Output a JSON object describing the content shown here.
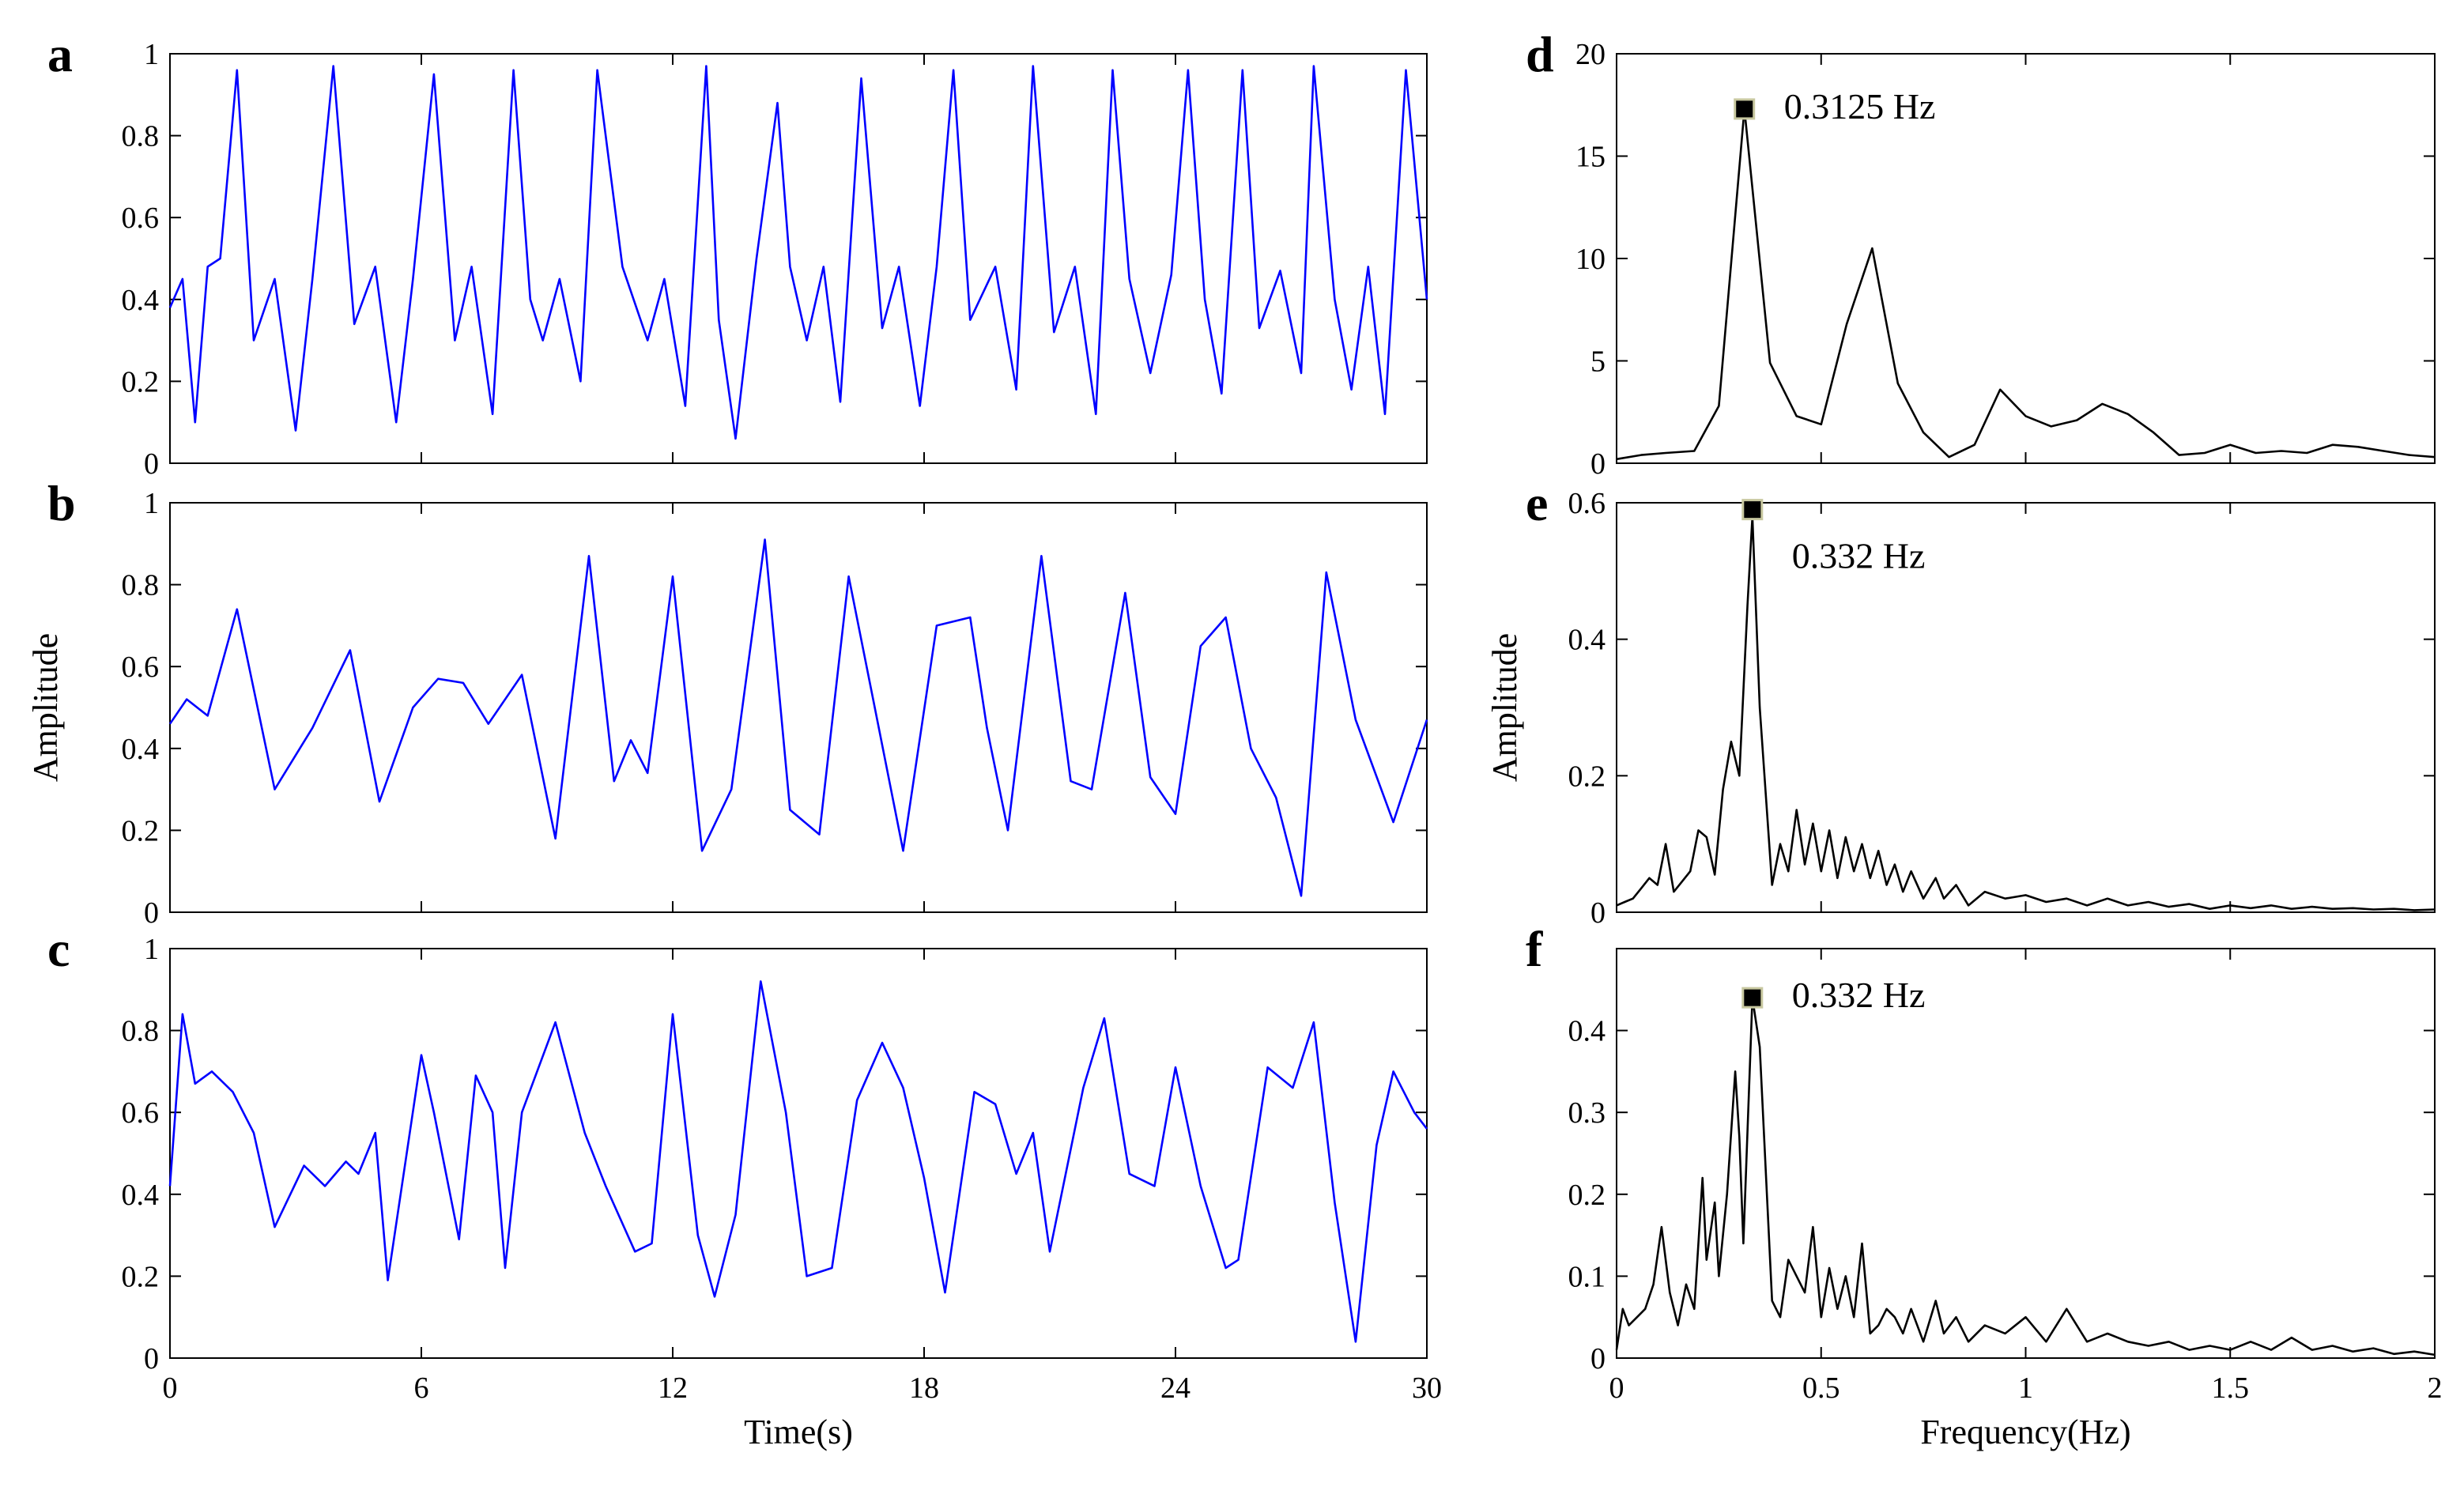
{
  "chart_data": [
    {
      "id": "a",
      "panel_label": "a",
      "type": "line",
      "series_color": "#0000ff",
      "xlim": [
        0,
        30
      ],
      "ylim": [
        0,
        1
      ],
      "yticks": [
        0,
        0.2,
        0.4,
        0.6,
        0.8,
        1
      ],
      "ytick_labels": [
        "0",
        "0.2",
        "0.4",
        "0.6",
        "0.8",
        "1"
      ],
      "xticks": [
        0,
        6,
        12,
        18,
        24,
        30
      ],
      "xtick_labels": [],
      "xlabel": "",
      "ylabel": "",
      "x": [
        0,
        0.3,
        0.6,
        0.9,
        1.2,
        1.6,
        2.0,
        2.5,
        3.0,
        3.4,
        3.9,
        4.4,
        4.9,
        5.4,
        5.8,
        6.3,
        6.8,
        7.2,
        7.7,
        8.2,
        8.6,
        8.9,
        9.3,
        9.8,
        10.2,
        10.8,
        11.4,
        11.8,
        12.3,
        12.8,
        13.1,
        13.5,
        14.0,
        14.5,
        14.8,
        15.2,
        15.6,
        16.0,
        16.5,
        17.0,
        17.4,
        17.9,
        18.3,
        18.7,
        19.1,
        19.7,
        20.2,
        20.6,
        21.1,
        21.6,
        22.1,
        22.5,
        22.9,
        23.4,
        23.9,
        24.3,
        24.7,
        25.1,
        25.6,
        26.0,
        26.5,
        27.0,
        27.3,
        27.8,
        28.2,
        28.6,
        29.0,
        29.5,
        30
      ],
      "y": [
        0.38,
        0.45,
        0.1,
        0.48,
        0.5,
        0.96,
        0.3,
        0.45,
        0.08,
        0.45,
        0.97,
        0.34,
        0.48,
        0.1,
        0.45,
        0.95,
        0.3,
        0.48,
        0.12,
        0.96,
        0.4,
        0.3,
        0.45,
        0.2,
        0.96,
        0.48,
        0.3,
        0.45,
        0.14,
        0.97,
        0.35,
        0.06,
        0.5,
        0.88,
        0.48,
        0.3,
        0.48,
        0.15,
        0.94,
        0.33,
        0.48,
        0.14,
        0.48,
        0.96,
        0.35,
        0.48,
        0.18,
        0.97,
        0.32,
        0.48,
        0.12,
        0.96,
        0.45,
        0.22,
        0.46,
        0.96,
        0.4,
        0.17,
        0.96,
        0.33,
        0.47,
        0.22,
        0.97,
        0.4,
        0.18,
        0.48,
        0.12,
        0.96,
        0.4
      ],
      "peak_label": null
    },
    {
      "id": "b",
      "panel_label": "b",
      "type": "line",
      "series_color": "#0000ff",
      "xlim": [
        0,
        30
      ],
      "ylim": [
        0,
        1
      ],
      "yticks": [
        0,
        0.2,
        0.4,
        0.6,
        0.8,
        1
      ],
      "ytick_labels": [
        "0",
        "0.2",
        "0.4",
        "0.6",
        "0.8",
        "1"
      ],
      "xticks": [
        0,
        6,
        12,
        18,
        24,
        30
      ],
      "xtick_labels": [],
      "xlabel": "",
      "ylabel": "Amplitude",
      "x": [
        0,
        0.4,
        0.9,
        1.6,
        2.5,
        3.4,
        4.3,
        5.0,
        5.8,
        6.4,
        7.0,
        7.6,
        8.4,
        9.2,
        10.0,
        10.6,
        11.0,
        11.4,
        12.0,
        12.7,
        13.4,
        14.2,
        14.8,
        15.5,
        16.2,
        16.9,
        17.5,
        18.3,
        19.1,
        19.5,
        20.0,
        20.8,
        21.5,
        22.0,
        22.8,
        23.4,
        24.0,
        24.6,
        25.2,
        25.8,
        26.4,
        27.0,
        27.6,
        28.3,
        29.2,
        30
      ],
      "y": [
        0.46,
        0.52,
        0.48,
        0.74,
        0.3,
        0.45,
        0.64,
        0.27,
        0.5,
        0.57,
        0.56,
        0.46,
        0.58,
        0.18,
        0.87,
        0.32,
        0.42,
        0.34,
        0.82,
        0.15,
        0.3,
        0.91,
        0.25,
        0.19,
        0.82,
        0.46,
        0.15,
        0.7,
        0.72,
        0.45,
        0.2,
        0.87,
        0.32,
        0.3,
        0.78,
        0.33,
        0.24,
        0.65,
        0.72,
        0.4,
        0.28,
        0.04,
        0.83,
        0.47,
        0.22,
        0.47
      ],
      "peak_label": null
    },
    {
      "id": "c",
      "panel_label": "c",
      "type": "line",
      "series_color": "#0000ff",
      "xlim": [
        0,
        30
      ],
      "ylim": [
        0,
        1
      ],
      "yticks": [
        0,
        0.2,
        0.4,
        0.6,
        0.8,
        1
      ],
      "ytick_labels": [
        "0",
        "0.2",
        "0.4",
        "0.6",
        "0.8",
        "1"
      ],
      "xticks": [
        0,
        6,
        12,
        18,
        24,
        30
      ],
      "xtick_labels": [
        "0",
        "6",
        "12",
        "18",
        "24",
        "30"
      ],
      "xlabel": "Time(s)",
      "ylabel": "",
      "x": [
        0,
        0.3,
        0.6,
        1.0,
        1.5,
        2.0,
        2.5,
        3.2,
        3.7,
        4.2,
        4.5,
        4.9,
        5.2,
        6.0,
        6.3,
        6.9,
        7.3,
        7.7,
        8.0,
        8.4,
        9.2,
        9.9,
        10.4,
        11.1,
        11.5,
        12.0,
        12.6,
        13.0,
        13.5,
        14.1,
        14.7,
        15.2,
        15.8,
        16.4,
        17.0,
        17.5,
        18.0,
        18.5,
        19.2,
        19.7,
        20.2,
        20.6,
        21.0,
        21.8,
        22.3,
        22.9,
        23.5,
        24.0,
        24.6,
        25.2,
        25.5,
        26.2,
        26.8,
        27.3,
        27.8,
        28.3,
        28.8,
        29.2,
        29.7,
        30
      ],
      "y": [
        0.42,
        0.84,
        0.67,
        0.7,
        0.65,
        0.55,
        0.32,
        0.47,
        0.42,
        0.48,
        0.45,
        0.55,
        0.19,
        0.74,
        0.6,
        0.29,
        0.69,
        0.6,
        0.22,
        0.6,
        0.82,
        0.55,
        0.42,
        0.26,
        0.28,
        0.84,
        0.3,
        0.15,
        0.35,
        0.92,
        0.6,
        0.2,
        0.22,
        0.63,
        0.77,
        0.66,
        0.44,
        0.16,
        0.65,
        0.62,
        0.45,
        0.55,
        0.26,
        0.66,
        0.83,
        0.45,
        0.42,
        0.71,
        0.42,
        0.22,
        0.24,
        0.71,
        0.66,
        0.82,
        0.38,
        0.04,
        0.52,
        0.7,
        0.6,
        0.56
      ],
      "peak_label": null
    },
    {
      "id": "d",
      "panel_label": "d",
      "type": "line",
      "series_color": "#000000",
      "xlim": [
        0,
        2
      ],
      "ylim": [
        0,
        20
      ],
      "yticks": [
        0,
        5,
        10,
        15,
        20
      ],
      "ytick_labels": [
        "0",
        "5",
        "10",
        "15",
        "20"
      ],
      "xticks": [
        0,
        0.5,
        1,
        1.5,
        2
      ],
      "xtick_labels": [],
      "xlabel": "",
      "ylabel": "",
      "x": [
        0,
        0.06,
        0.12,
        0.19,
        0.25,
        0.3125,
        0.375,
        0.44,
        0.5,
        0.5625,
        0.625,
        0.6875,
        0.75,
        0.8125,
        0.875,
        0.9375,
        1.0,
        1.0625,
        1.125,
        1.1875,
        1.25,
        1.3125,
        1.375,
        1.4375,
        1.5,
        1.5625,
        1.625,
        1.6875,
        1.75,
        1.8125,
        1.875,
        1.9375,
        2.0
      ],
      "y": [
        0.2,
        0.4,
        0.5,
        0.6,
        2.8,
        17.3,
        4.9,
        2.3,
        1.9,
        6.8,
        10.5,
        3.9,
        1.5,
        0.3,
        0.9,
        3.6,
        2.3,
        1.8,
        2.1,
        2.9,
        2.4,
        1.5,
        0.4,
        0.5,
        0.9,
        0.5,
        0.6,
        0.5,
        0.9,
        0.8,
        0.6,
        0.4,
        0.3
      ],
      "peak_label": {
        "x": 0.3125,
        "y": 17.3,
        "text": "0.3125 Hz"
      }
    },
    {
      "id": "e",
      "panel_label": "e",
      "type": "line",
      "series_color": "#000000",
      "xlim": [
        0,
        2
      ],
      "ylim": [
        0,
        0.6
      ],
      "yticks": [
        0,
        0.2,
        0.4,
        0.6
      ],
      "ytick_labels": [
        "0",
        "0.2",
        "0.4",
        "0.6"
      ],
      "xticks": [
        0,
        0.5,
        1,
        1.5,
        2
      ],
      "xtick_labels": [],
      "xlabel": "",
      "ylabel": "Amplitude",
      "x": [
        0,
        0.02,
        0.04,
        0.06,
        0.08,
        0.1,
        0.12,
        0.14,
        0.16,
        0.18,
        0.2,
        0.22,
        0.24,
        0.26,
        0.28,
        0.3,
        0.32,
        0.332,
        0.35,
        0.38,
        0.4,
        0.42,
        0.44,
        0.46,
        0.48,
        0.5,
        0.52,
        0.54,
        0.56,
        0.58,
        0.6,
        0.62,
        0.64,
        0.66,
        0.68,
        0.7,
        0.72,
        0.75,
        0.78,
        0.8,
        0.83,
        0.86,
        0.9,
        0.95,
        1.0,
        1.05,
        1.1,
        1.15,
        1.2,
        1.25,
        1.3,
        1.35,
        1.4,
        1.45,
        1.5,
        1.55,
        1.6,
        1.65,
        1.7,
        1.75,
        1.8,
        1.85,
        1.9,
        1.95,
        2.0
      ],
      "y": [
        0.01,
        0.015,
        0.02,
        0.035,
        0.05,
        0.04,
        0.1,
        0.03,
        0.045,
        0.06,
        0.12,
        0.11,
        0.055,
        0.18,
        0.25,
        0.2,
        0.45,
        0.58,
        0.3,
        0.04,
        0.1,
        0.06,
        0.15,
        0.07,
        0.13,
        0.06,
        0.12,
        0.05,
        0.11,
        0.06,
        0.1,
        0.05,
        0.09,
        0.04,
        0.07,
        0.03,
        0.06,
        0.02,
        0.05,
        0.02,
        0.04,
        0.01,
        0.03,
        0.02,
        0.025,
        0.015,
        0.02,
        0.01,
        0.02,
        0.01,
        0.015,
        0.008,
        0.012,
        0.005,
        0.01,
        0.006,
        0.01,
        0.005,
        0.008,
        0.005,
        0.006,
        0.004,
        0.005,
        0.003,
        0.004
      ],
      "peak_label": {
        "x": 0.332,
        "y": 0.59,
        "text": "0.332 Hz"
      }
    },
    {
      "id": "f",
      "panel_label": "f",
      "type": "line",
      "series_color": "#000000",
      "xlim": [
        0,
        2
      ],
      "ylim": [
        0,
        0.5
      ],
      "yticks": [
        0,
        0.1,
        0.2,
        0.3,
        0.4
      ],
      "ytick_labels": [
        "0",
        "0.1",
        "0.2",
        "0.3",
        "0.4"
      ],
      "xticks": [
        0,
        0.5,
        1,
        1.5,
        2
      ],
      "xtick_labels": [
        "0",
        "0.5",
        "1",
        "1.5",
        "2"
      ],
      "xlabel": "Frequency(Hz)",
      "ylabel": "",
      "x": [
        0,
        0.015,
        0.03,
        0.05,
        0.07,
        0.09,
        0.11,
        0.13,
        0.15,
        0.17,
        0.19,
        0.21,
        0.22,
        0.24,
        0.25,
        0.27,
        0.29,
        0.3,
        0.31,
        0.332,
        0.35,
        0.38,
        0.4,
        0.42,
        0.44,
        0.46,
        0.48,
        0.5,
        0.52,
        0.54,
        0.56,
        0.58,
        0.6,
        0.62,
        0.64,
        0.66,
        0.68,
        0.7,
        0.72,
        0.75,
        0.78,
        0.8,
        0.83,
        0.86,
        0.9,
        0.95,
        1.0,
        1.05,
        1.1,
        1.15,
        1.2,
        1.25,
        1.3,
        1.35,
        1.4,
        1.45,
        1.5,
        1.55,
        1.6,
        1.65,
        1.7,
        1.75,
        1.8,
        1.85,
        1.9,
        1.95,
        2.0
      ],
      "y": [
        0.01,
        0.06,
        0.04,
        0.05,
        0.06,
        0.09,
        0.16,
        0.08,
        0.04,
        0.09,
        0.06,
        0.22,
        0.12,
        0.19,
        0.1,
        0.2,
        0.35,
        0.27,
        0.14,
        0.44,
        0.38,
        0.07,
        0.05,
        0.12,
        0.1,
        0.08,
        0.16,
        0.05,
        0.11,
        0.06,
        0.1,
        0.05,
        0.14,
        0.03,
        0.04,
        0.06,
        0.05,
        0.03,
        0.06,
        0.02,
        0.07,
        0.03,
        0.05,
        0.02,
        0.04,
        0.03,
        0.05,
        0.02,
        0.06,
        0.02,
        0.03,
        0.02,
        0.015,
        0.02,
        0.01,
        0.015,
        0.01,
        0.02,
        0.01,
        0.025,
        0.01,
        0.015,
        0.008,
        0.012,
        0.005,
        0.008,
        0.004
      ],
      "peak_label": {
        "x": 0.332,
        "y": 0.44,
        "text": "0.332 Hz"
      }
    }
  ]
}
